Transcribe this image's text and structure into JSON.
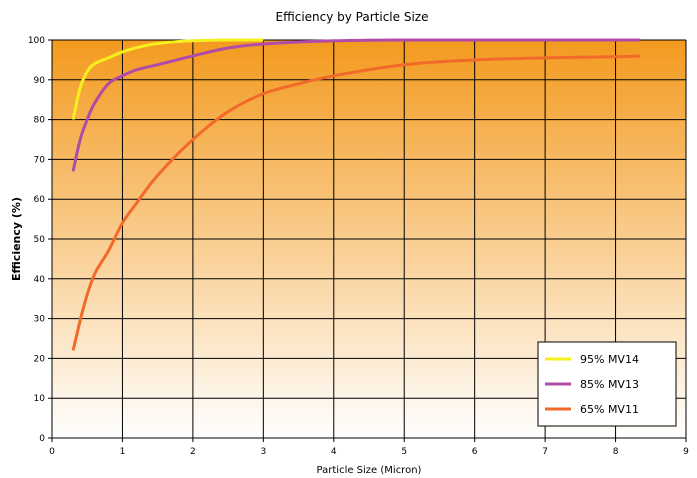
{
  "chart_data": {
    "type": "line",
    "title": "Efficiency by Particle Size",
    "xlabel": "Particle Size (Micron)",
    "ylabel": "Efficiency (%)",
    "xlim": [
      0,
      9
    ],
    "ylim": [
      0,
      100
    ],
    "x_ticks": [
      "0",
      "1",
      "2",
      "3",
      "4",
      "5",
      "6",
      "7",
      "8",
      "9"
    ],
    "y_ticks": [
      "0",
      "10",
      "20",
      "30",
      "40",
      "50",
      "60",
      "70",
      "80",
      "90",
      "100"
    ],
    "grid": true,
    "legend_position": "bottom-right",
    "background": {
      "top_color": "#f39a1e",
      "bottom_color": "#ffffff"
    },
    "series": [
      {
        "name": "95% MV14",
        "color": "#f5f01e",
        "x": [
          0.3,
          0.4,
          0.5,
          0.6,
          0.8,
          1.0,
          1.3,
          1.6,
          2.0,
          2.5,
          3.0
        ],
        "y": [
          80,
          88,
          92,
          94,
          95.5,
          97,
          98.5,
          99.3,
          99.8,
          100,
          100
        ]
      },
      {
        "name": "85% MV13",
        "color": "#b04ca8",
        "x": [
          0.3,
          0.4,
          0.5,
          0.6,
          0.8,
          1.0,
          1.2,
          1.5,
          2.0,
          2.5,
          3.0,
          4.0,
          5.0,
          6.0,
          7.0,
          8.0,
          8.35
        ],
        "y": [
          67,
          75,
          80,
          84,
          89,
          91,
          92.5,
          93.8,
          96,
          98,
          99,
          99.8,
          100,
          100,
          100,
          100,
          100
        ]
      },
      {
        "name": "65% MV11",
        "color": "#f26a2a",
        "x": [
          0.3,
          0.45,
          0.6,
          0.8,
          1.0,
          1.2,
          1.5,
          2.0,
          2.5,
          3.0,
          3.5,
          4.0,
          5.0,
          6.0,
          7.0,
          8.0,
          8.35
        ],
        "y": [
          22,
          33,
          41,
          47,
          54,
          59,
          66,
          75,
          82,
          86.5,
          89,
          91,
          93.8,
          95,
          95.5,
          95.8,
          96
        ]
      }
    ]
  }
}
